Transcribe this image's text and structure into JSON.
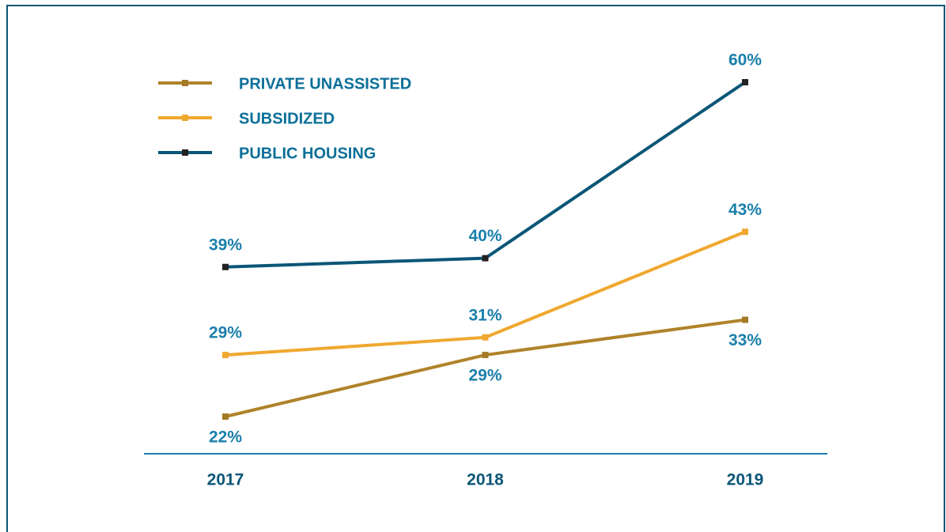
{
  "chart_data": {
    "type": "line",
    "categories": [
      "2017",
      "2018",
      "2019"
    ],
    "series": [
      {
        "name": "PRIVATE UNASSISTED",
        "color": "#b0832a",
        "marker_color": "#a57a26",
        "values": [
          22,
          29,
          33
        ],
        "value_labels": [
          "22%",
          "29%",
          "33%"
        ]
      },
      {
        "name": "SUBSIDIZED",
        "color": "#f0a830",
        "marker_color": "#f0a830",
        "values": [
          29,
          31,
          43
        ],
        "value_labels": [
          "29%",
          "31%",
          "43%"
        ]
      },
      {
        "name": "PUBLIC HOUSING",
        "color": "#0b5677",
        "marker_color": "#222222",
        "values": [
          39,
          40,
          60
        ],
        "value_labels": [
          "39%",
          "40%",
          "60%"
        ]
      }
    ]
  }
}
